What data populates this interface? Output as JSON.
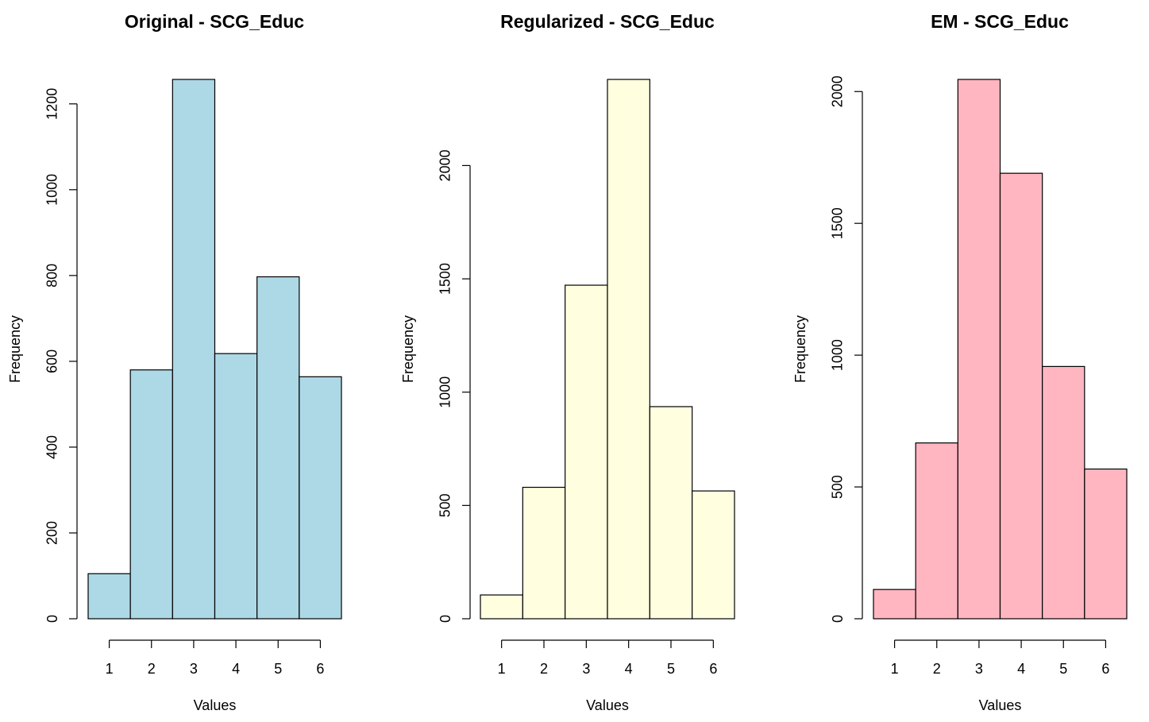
{
  "chart_data": [
    {
      "type": "bar",
      "title": "Original - SCG_Educ",
      "xlabel": "Values",
      "ylabel": "Frequency",
      "bar_color": "#add8e6",
      "categories": [
        "1",
        "2",
        "3",
        "4",
        "5",
        "6"
      ],
      "values": [
        105,
        580,
        1257,
        618,
        797,
        564
      ],
      "xlim": [
        0.5,
        6.5
      ],
      "ylim": [
        0,
        1257
      ],
      "yticks": [
        0,
        200,
        400,
        600,
        800,
        1000,
        1200
      ],
      "xticks": [
        1,
        2,
        3,
        4,
        5,
        6
      ]
    },
    {
      "type": "bar",
      "title": "Regularized - SCG_Educ",
      "xlabel": "Values",
      "ylabel": "Frequency",
      "bar_color": "#ffffe0",
      "categories": [
        "1",
        "2",
        "3",
        "4",
        "5",
        "6"
      ],
      "values": [
        105,
        580,
        1472,
        2380,
        936,
        564
      ],
      "xlim": [
        0.5,
        6.5
      ],
      "ylim": [
        0,
        2380
      ],
      "yticks": [
        0,
        500,
        1000,
        1500,
        2000
      ],
      "xticks": [
        1,
        2,
        3,
        4,
        5,
        6
      ]
    },
    {
      "type": "bar",
      "title": "EM - SCG_Educ",
      "xlabel": "Values",
      "ylabel": "Frequency",
      "bar_color": "#ffb6c1",
      "categories": [
        "1",
        "2",
        "3",
        "4",
        "5",
        "6"
      ],
      "values": [
        111,
        667,
        2046,
        1690,
        957,
        568
      ],
      "xlim": [
        0.5,
        6.5
      ],
      "ylim": [
        0,
        2046
      ],
      "yticks": [
        0,
        500,
        1000,
        1500,
        2000
      ],
      "xticks": [
        1,
        2,
        3,
        4,
        5,
        6
      ]
    }
  ]
}
